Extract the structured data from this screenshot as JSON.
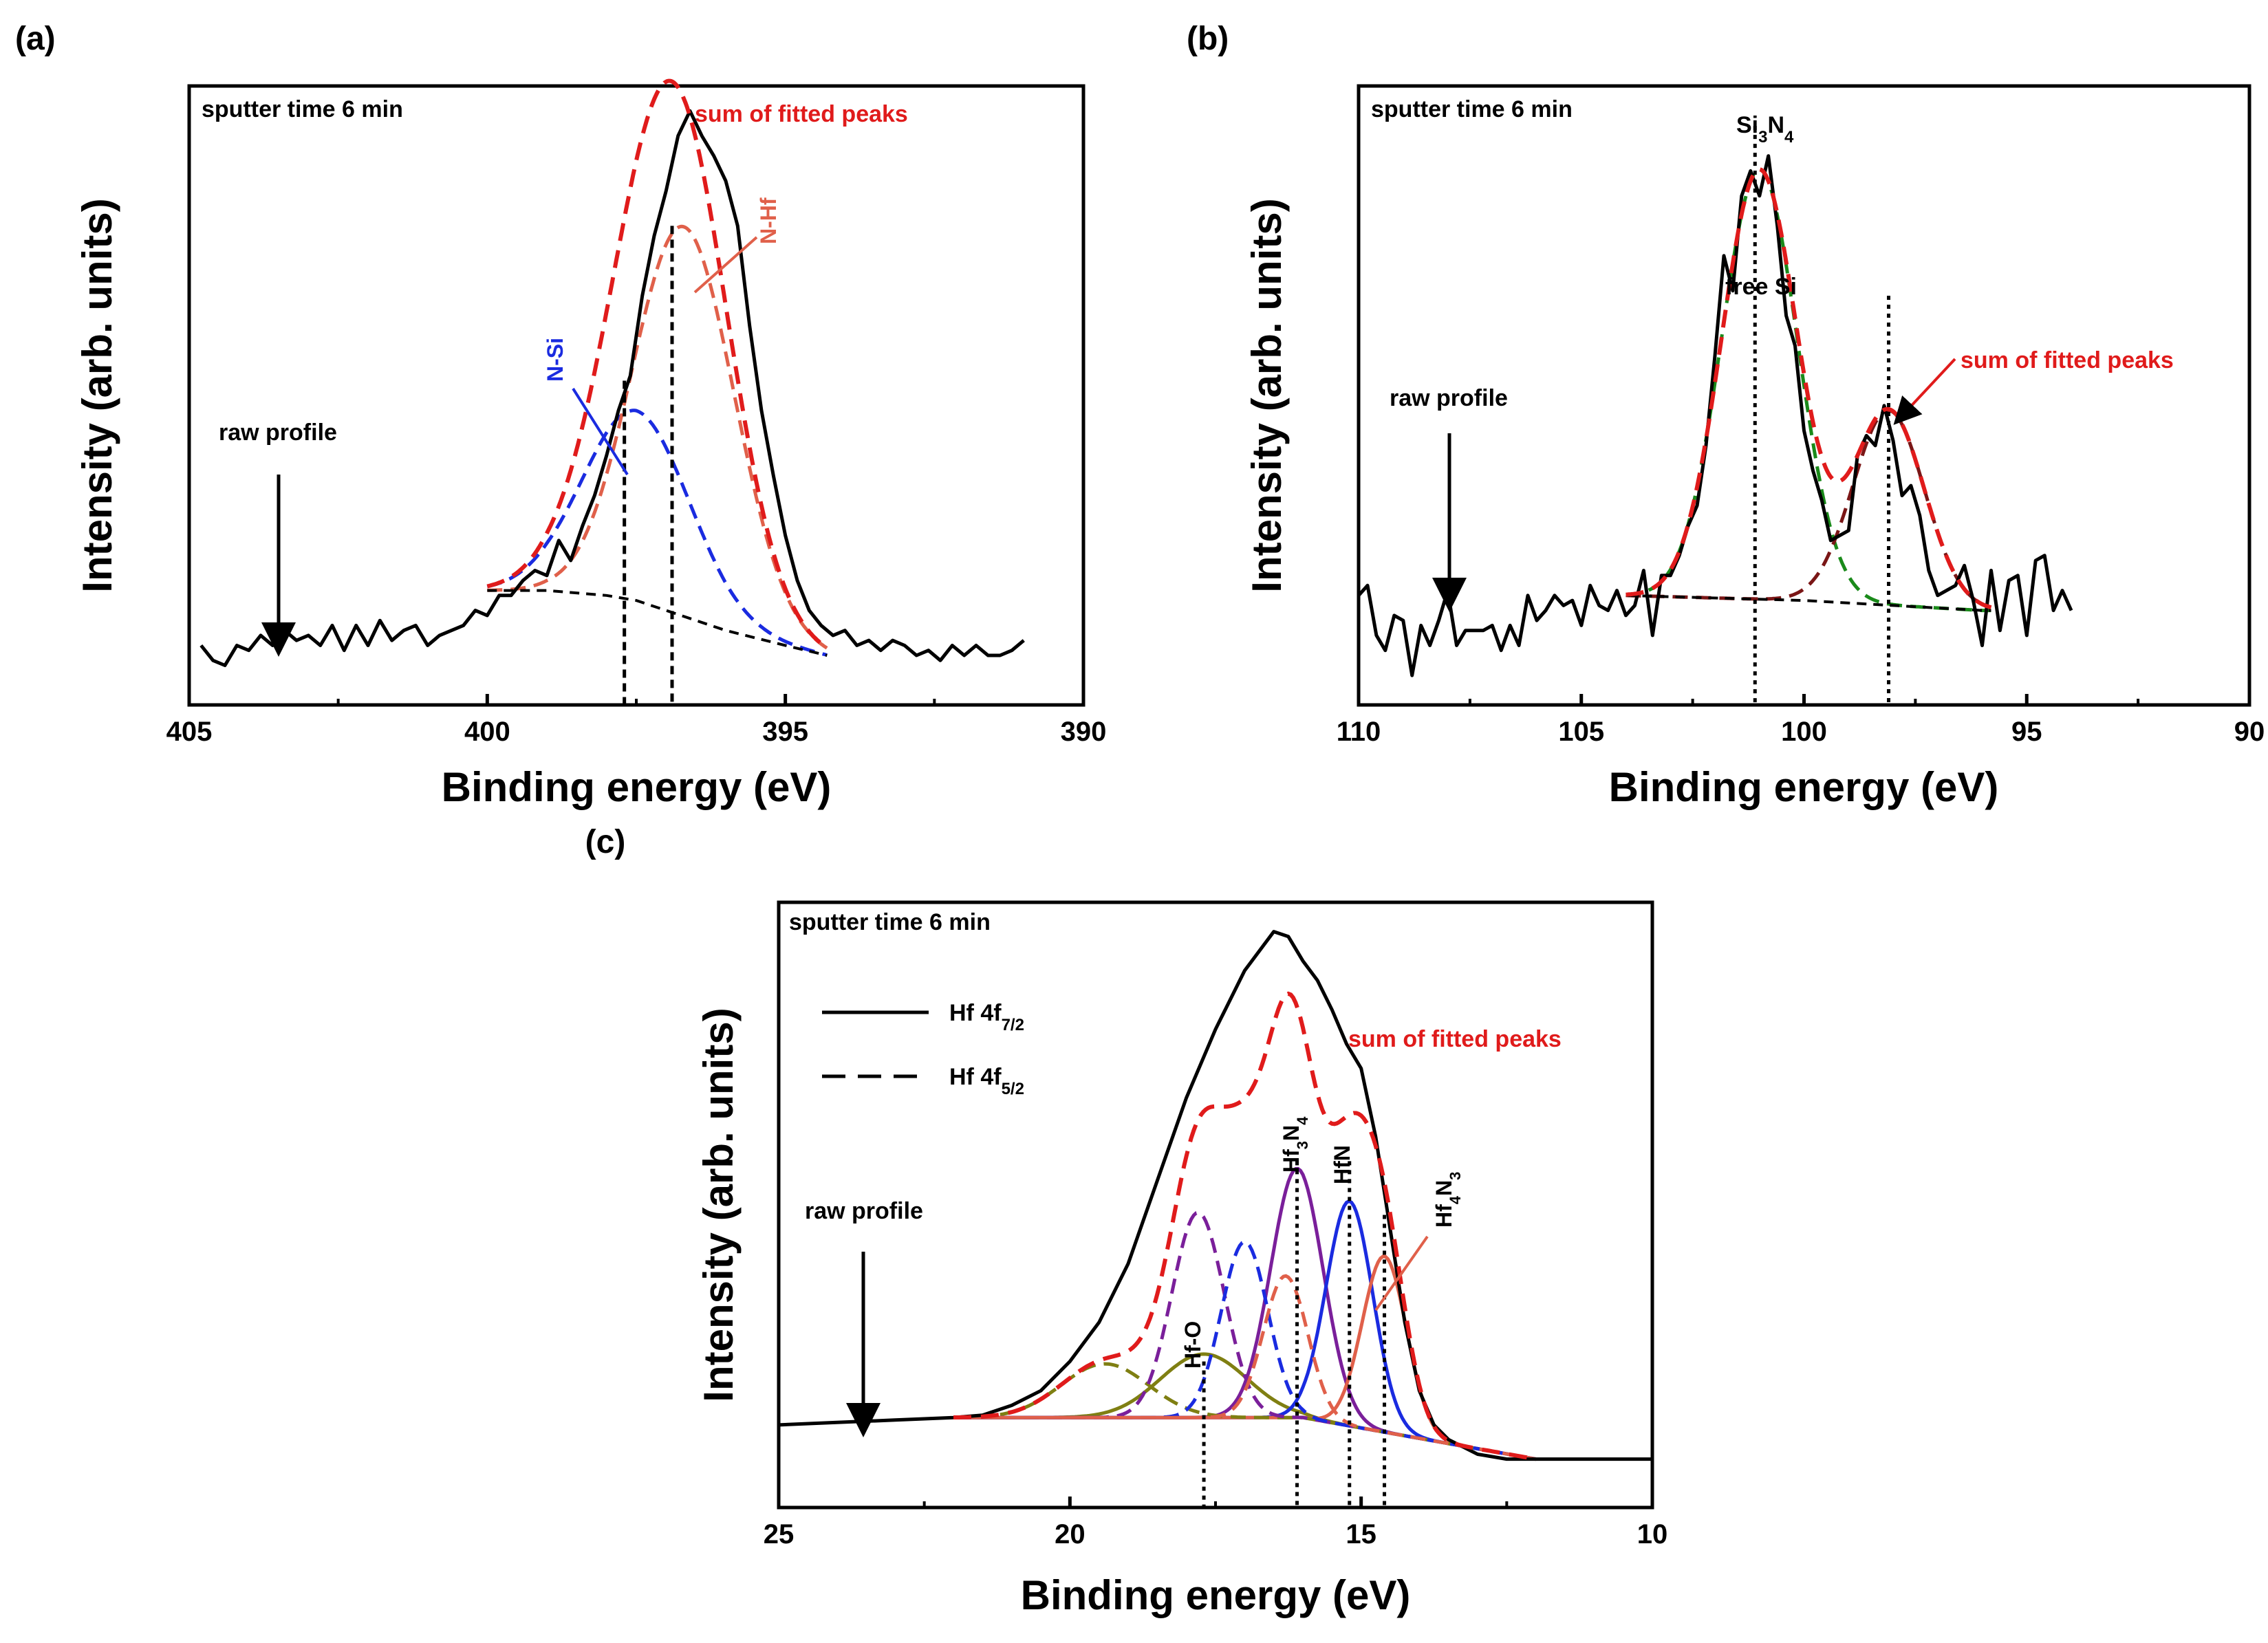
{
  "colors": {
    "raw": "#000000",
    "sum": "#e01b1b",
    "n_si": "#1a2be0",
    "n_hf": "#e0604a",
    "baseline": "#000000",
    "si3n4": "#1a8a1a",
    "free_si": "#7a1616",
    "hf_o": "#7f7f12",
    "hf3n4": "#7a1f9a",
    "hfn": "#1a2be0",
    "hf4n3": "#e0604a"
  },
  "chart_data": [
    {
      "type": "line",
      "panel_label": "(a)",
      "annotation_top": "sputter time 6 min",
      "xlabel": "Binding energy (eV)",
      "ylabel": "Intensity (arb. units)",
      "xlim": [
        405,
        390
      ],
      "ylim": [
        0,
        1.14
      ],
      "xticks": [
        405,
        400,
        395,
        390
      ],
      "xtick_labels": [
        "405",
        "400",
        "395",
        "390"
      ],
      "grid": false,
      "labels": {
        "sum": "sum of fitted peaks",
        "raw": "raw profile",
        "n_si": "N-Si",
        "n_hf": "N-Hf"
      },
      "peaks": [
        {
          "name": "N-Si",
          "center": 397.5,
          "height": 0.38,
          "sigma": 0.9,
          "color_key": "n_si",
          "dash": "dashed"
        },
        {
          "name": "N-Hf",
          "center": 396.7,
          "height": 0.78,
          "sigma": 0.85,
          "color_key": "n_hf",
          "dash": "dashed"
        }
      ],
      "marker_lines": [
        {
          "x": 397.7,
          "top": 0.55
        },
        {
          "x": 396.9,
          "top": 0.86
        }
      ],
      "series": [
        {
          "name": "raw profile",
          "color_key": "raw",
          "style": "solid",
          "x": [
            404.8,
            404.6,
            404.4,
            404.2,
            404.0,
            403.8,
            403.6,
            403.4,
            403.2,
            403.0,
            402.8,
            402.6,
            402.4,
            402.2,
            402.0,
            401.8,
            401.6,
            401.4,
            401.2,
            401.0,
            400.8,
            400.6,
            400.4,
            400.2,
            400.0,
            399.8,
            399.6,
            399.4,
            399.2,
            399.0,
            398.8,
            398.6,
            398.4,
            398.2,
            398.0,
            397.8,
            397.6,
            397.4,
            397.2,
            397.0,
            396.8,
            396.6,
            396.4,
            396.2,
            396.0,
            395.8,
            395.6,
            395.4,
            395.2,
            395.0,
            394.8,
            394.6,
            394.4,
            394.2,
            394.0,
            393.8,
            393.6,
            393.4,
            393.2,
            393.0,
            392.8,
            392.6,
            392.4,
            392.2,
            392.0,
            391.8,
            391.6,
            391.4,
            391.2,
            391.0
          ],
          "y": [
            0.02,
            -0.01,
            -0.02,
            0.02,
            0.01,
            0.04,
            0.02,
            0.05,
            0.03,
            0.04,
            0.02,
            0.06,
            0.01,
            0.06,
            0.02,
            0.07,
            0.03,
            0.05,
            0.06,
            0.02,
            0.04,
            0.05,
            0.06,
            0.09,
            0.08,
            0.12,
            0.12,
            0.15,
            0.17,
            0.16,
            0.23,
            0.19,
            0.26,
            0.32,
            0.4,
            0.49,
            0.56,
            0.72,
            0.84,
            0.93,
            1.04,
            1.09,
            1.04,
            1.0,
            0.95,
            0.86,
            0.66,
            0.49,
            0.36,
            0.24,
            0.15,
            0.09,
            0.06,
            0.04,
            0.05,
            0.02,
            0.03,
            0.01,
            0.03,
            0.02,
            0.0,
            0.01,
            -0.01,
            0.02,
            0.0,
            0.02,
            0.0,
            0.0,
            0.01,
            0.03
          ]
        },
        {
          "name": "sum of fitted peaks",
          "color_key": "sum",
          "style": "dashed",
          "fit": "sum"
        },
        {
          "name": "baseline",
          "color_key": "baseline",
          "style": "dashed",
          "x": [
            400.0,
            399.0,
            398.0,
            397.5,
            397.0,
            396.0,
            395.0,
            394.3
          ],
          "y": [
            0.13,
            0.13,
            0.12,
            0.11,
            0.09,
            0.05,
            0.02,
            0.0
          ]
        }
      ]
    },
    {
      "type": "line",
      "panel_label": "(b)",
      "annotation_top": "sputter time 6 min",
      "xlabel": "Binding energy (eV)",
      "ylabel": "Intensity (arb. units)",
      "xlim": [
        110,
        90
      ],
      "ylim": [
        0,
        1.14
      ],
      "xticks": [
        110,
        105,
        100,
        95,
        90
      ],
      "xtick_labels": [
        "110",
        "105",
        "100",
        "95",
        "90"
      ],
      "grid": false,
      "labels": {
        "sum": "sum of fitted peaks",
        "raw": "raw profile",
        "si3n4": "Si3N4",
        "free_si": "free Si"
      },
      "peaks": [
        {
          "name": "Si3N4",
          "center": 101.0,
          "height": 0.86,
          "sigma": 0.85,
          "color_key": "si3n4",
          "dash": "dashed"
        },
        {
          "name": "free Si",
          "center": 98.1,
          "height": 0.39,
          "sigma": 0.8,
          "color_key": "free_si",
          "dash": "dashed"
        }
      ],
      "marker_lines": [
        {
          "x": 101.1,
          "top": 1.06
        },
        {
          "x": 98.1,
          "top": 0.72
        }
      ],
      "series": [
        {
          "name": "raw profile",
          "color_key": "raw",
          "style": "solid",
          "x": [
            110.0,
            109.8,
            109.6,
            109.4,
            109.2,
            109.0,
            108.8,
            108.6,
            108.4,
            108.2,
            108.0,
            107.8,
            107.6,
            107.4,
            107.2,
            107.0,
            106.8,
            106.6,
            106.4,
            106.2,
            106.0,
            105.8,
            105.6,
            105.4,
            105.2,
            105.0,
            104.8,
            104.6,
            104.4,
            104.2,
            104.0,
            103.8,
            103.6,
            103.4,
            103.2,
            103.0,
            102.8,
            102.6,
            102.4,
            102.2,
            102.0,
            101.8,
            101.6,
            101.4,
            101.2,
            101.0,
            100.8,
            100.6,
            100.4,
            100.2,
            100.0,
            99.8,
            99.6,
            99.4,
            99.2,
            99.0,
            98.8,
            98.6,
            98.4,
            98.2,
            98.0,
            97.8,
            97.6,
            97.4,
            97.2,
            97.0,
            96.8,
            96.6,
            96.4,
            96.2,
            96.0,
            95.8,
            95.6,
            95.4,
            95.2,
            95.0,
            94.8,
            94.6,
            94.4,
            94.2,
            94.0
          ],
          "y": [
            0.12,
            0.14,
            0.04,
            0.01,
            0.08,
            0.07,
            -0.04,
            0.06,
            0.02,
            0.07,
            0.13,
            0.02,
            0.05,
            0.05,
            0.05,
            0.06,
            0.01,
            0.06,
            0.02,
            0.12,
            0.07,
            0.09,
            0.12,
            0.1,
            0.11,
            0.06,
            0.14,
            0.1,
            0.09,
            0.13,
            0.08,
            0.1,
            0.17,
            0.04,
            0.16,
            0.16,
            0.2,
            0.26,
            0.3,
            0.42,
            0.6,
            0.8,
            0.73,
            0.92,
            0.97,
            0.92,
            1.0,
            0.86,
            0.68,
            0.62,
            0.45,
            0.37,
            0.31,
            0.23,
            0.24,
            0.25,
            0.4,
            0.44,
            0.42,
            0.5,
            0.43,
            0.32,
            0.34,
            0.28,
            0.17,
            0.12,
            0.13,
            0.14,
            0.18,
            0.11,
            0.02,
            0.17,
            0.05,
            0.15,
            0.16,
            0.04,
            0.19,
            0.2,
            0.09,
            0.13,
            0.09
          ]
        },
        {
          "name": "sum of fitted peaks",
          "color_key": "sum",
          "style": "dashed",
          "fit": "sum"
        },
        {
          "name": "baseline",
          "color_key": "baseline",
          "style": "dashed",
          "x": [
            104.0,
            102.0,
            100.0,
            98.0,
            96.0,
            95.8
          ],
          "y": [
            0.12,
            0.115,
            0.11,
            0.1,
            0.09,
            0.09
          ]
        }
      ]
    },
    {
      "type": "line",
      "panel_label": "(c)",
      "annotation_top": "sputter time 6 min",
      "xlabel": "Binding energy (eV)",
      "ylabel": "Intensity (arb. units)",
      "xlim": [
        25,
        10
      ],
      "ylim": [
        0,
        1.14
      ],
      "xticks": [
        25,
        20,
        15,
        10
      ],
      "xtick_labels": [
        "25",
        "20",
        "15",
        "10"
      ],
      "grid": false,
      "labels": {
        "sum": "sum of fitted peaks",
        "raw": "raw profile",
        "hf_o": "Hf-O",
        "hf3n4": "Hf3N4",
        "hfn": "HfN",
        "hf4n3": "Hf4N3"
      },
      "legend": [
        {
          "label": "Hf 4f",
          "sub": "7/2",
          "style": "solid"
        },
        {
          "label": "Hf 4f",
          "sub": "5/2",
          "style": "dashed"
        }
      ],
      "peaks": [
        {
          "name": "Hf-O",
          "center": 17.7,
          "height": 0.13,
          "sigma": 0.75,
          "color_key": "hf_o",
          "dash": "solid"
        },
        {
          "name": "Hf3N4",
          "center": 16.1,
          "height": 0.51,
          "sigma": 0.45,
          "color_key": "hf3n4",
          "dash": "solid"
        },
        {
          "name": "HfN",
          "center": 15.2,
          "height": 0.46,
          "sigma": 0.4,
          "color_key": "hfn",
          "dash": "solid"
        },
        {
          "name": "Hf4N3",
          "center": 14.6,
          "height": 0.36,
          "sigma": 0.38,
          "color_key": "hf4n3",
          "dash": "solid"
        },
        {
          "name": "Hf-O 4f5/2",
          "center": 19.4,
          "height": 0.11,
          "sigma": 0.75,
          "color_key": "hf_o",
          "dash": "dashed"
        },
        {
          "name": "Hf3N4 4f5/2",
          "center": 17.8,
          "height": 0.42,
          "sigma": 0.45,
          "color_key": "hf3n4",
          "dash": "dashed"
        },
        {
          "name": "HfN 4f5/2",
          "center": 17.0,
          "height": 0.36,
          "sigma": 0.4,
          "color_key": "hfn",
          "dash": "dashed"
        },
        {
          "name": "Hf4N3 4f5/2",
          "center": 16.3,
          "height": 0.29,
          "sigma": 0.38,
          "color_key": "hf4n3",
          "dash": "dashed"
        }
      ],
      "marker_lines": [
        {
          "x": 17.7,
          "top": 0.2
        },
        {
          "x": 16.1,
          "top": 0.61
        },
        {
          "x": 15.2,
          "top": 0.61
        },
        {
          "x": 14.6,
          "top": 0.5
        }
      ],
      "series": [
        {
          "name": "raw profile",
          "color_key": "raw",
          "style": "solid",
          "x": [
            25.0,
            24.0,
            23.0,
            22.0,
            21.5,
            21.0,
            20.5,
            20.0,
            19.5,
            19.0,
            18.5,
            18.0,
            17.5,
            17.0,
            16.75,
            16.5,
            16.25,
            16.0,
            15.75,
            15.5,
            15.25,
            15.0,
            14.75,
            14.5,
            14.25,
            14.0,
            13.75,
            13.5,
            13.0,
            12.5,
            12.0,
            11.0,
            10.0
          ],
          "y": [
            0.07,
            0.075,
            0.08,
            0.085,
            0.09,
            0.11,
            0.14,
            0.2,
            0.28,
            0.4,
            0.57,
            0.74,
            0.88,
            1.0,
            1.04,
            1.08,
            1.07,
            1.02,
            0.98,
            0.92,
            0.85,
            0.8,
            0.66,
            0.47,
            0.28,
            0.14,
            0.07,
            0.04,
            0.01,
            0.0,
            0.0,
            0.0,
            0.0
          ]
        },
        {
          "name": "sum of fitted peaks",
          "color_key": "sum",
          "style": "dashed",
          "fit": "sum"
        }
      ]
    }
  ]
}
